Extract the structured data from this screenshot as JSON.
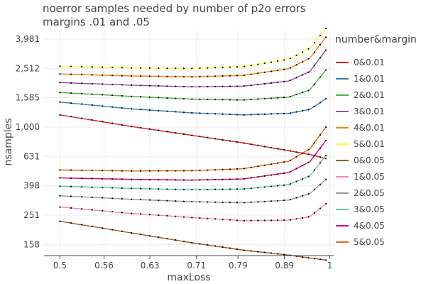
{
  "chart_data": {
    "type": "line",
    "title": "noerror samples needed by number of p2o errors",
    "subtitle": "margins .01 and .05",
    "xlabel": "maxLoss",
    "ylabel": "nsamples",
    "yscale": "log",
    "xscale": "log",
    "xlim": [
      0.48,
      1.01
    ],
    "ylim": [
      133,
      4600
    ],
    "x_ticks": [
      0.5,
      0.56,
      0.63,
      0.71,
      0.79,
      0.89,
      1
    ],
    "x_tick_labels": [
      "0.5",
      "0.56",
      "0.63",
      "0.71",
      "0.79",
      "0.89",
      "1"
    ],
    "y_ticks": [
      158,
      251,
      398,
      631,
      1000,
      1585,
      2512,
      3981
    ],
    "y_tick_labels": [
      "158",
      "251",
      "398",
      "631",
      "1,000",
      "1,585",
      "2,512",
      "3,981"
    ],
    "legend_title": "number&margin",
    "legend_position": "right",
    "x": [
      0.5,
      0.6,
      0.7,
      0.8,
      0.9,
      0.95,
      0.99
    ],
    "series": [
      {
        "name": "0&0.01",
        "color": "#e41a1c",
        "values": [
          1210,
          1010,
          880,
          780,
          690,
          650,
          610
        ]
      },
      {
        "name": "1&0.01",
        "color": "#377eb8",
        "values": [
          1480,
          1330,
          1250,
          1210,
          1240,
          1320,
          1560
        ]
      },
      {
        "name": "2&0.01",
        "color": "#4daf4a",
        "values": [
          1720,
          1620,
          1550,
          1530,
          1600,
          1790,
          2450
        ]
      },
      {
        "name": "3&0.01",
        "color": "#984ea3",
        "values": [
          2010,
          1930,
          1880,
          1900,
          2060,
          2390,
          3350
        ]
      },
      {
        "name": "4&0.01",
        "color": "#ff7f00",
        "values": [
          2300,
          2230,
          2200,
          2250,
          2500,
          2950,
          4100
        ]
      },
      {
        "name": "5&0.01",
        "color": "#ffff33",
        "values": [
          2600,
          2530,
          2510,
          2580,
          2900,
          3450,
          4700
        ]
      },
      {
        "name": "0&0.05",
        "color": "#a65628",
        "values": [
          228,
          190,
          163,
          145,
          134,
          128,
          124
        ]
      },
      {
        "name": "1&0.05",
        "color": "#f781bf",
        "values": [
          285,
          258,
          242,
          230,
          232,
          245,
          300
        ]
      },
      {
        "name": "2&0.05",
        "color": "#999999",
        "values": [
          340,
          322,
          310,
          305,
          318,
          352,
          440
        ]
      },
      {
        "name": "3&0.05",
        "color": "#66c2a5",
        "values": [
          395,
          382,
          374,
          378,
          405,
          465,
          640
        ]
      },
      {
        "name": "4&0.05",
        "color": "#d6006e",
        "values": [
          450,
          440,
          435,
          443,
          490,
          580,
          810
        ]
      },
      {
        "name": "5&0.05",
        "color": "#e06c00",
        "values": [
          510,
          502,
          504,
          520,
          585,
          710,
          1000
        ]
      }
    ]
  }
}
